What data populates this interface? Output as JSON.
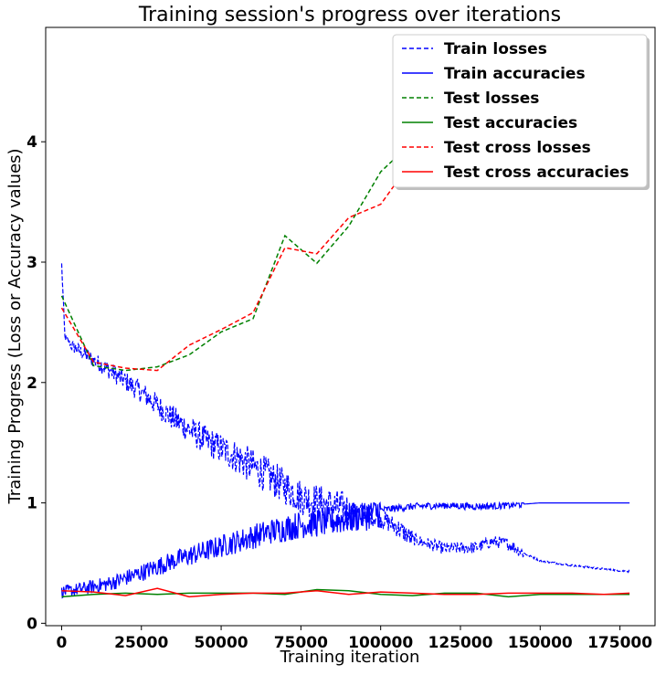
{
  "chart_data": {
    "type": "line",
    "title": "Training session's progress over iterations",
    "xlabel": "Training iteration",
    "ylabel": "Training Progress (Loss or Accuracy values)",
    "xlim": [
      -5000,
      186000
    ],
    "ylim": [
      -0.02,
      4.95
    ],
    "xticks": [
      0,
      25000,
      50000,
      75000,
      100000,
      125000,
      150000,
      175000
    ],
    "xtick_labels": [
      "0",
      "25000",
      "50000",
      "75000",
      "100000",
      "125000",
      "150000",
      "175000"
    ],
    "yticks": [
      0,
      1,
      2,
      3,
      4
    ],
    "ytick_labels": [
      "0",
      "1",
      "2",
      "3",
      "4"
    ],
    "grid": false,
    "legend_position": "top-right",
    "series": [
      {
        "name": "Train losses",
        "color": "#0000ff",
        "style": "dashed",
        "noisy": true,
        "x": [
          0,
          1000,
          3000,
          8000,
          15000,
          25000,
          35000,
          45000,
          55000,
          65000,
          75000,
          85000,
          92000,
          100000,
          105000,
          110000,
          120000,
          130000,
          135000,
          140000,
          145000,
          150000,
          160000,
          170000,
          178000
        ],
        "y": [
          2.98,
          2.38,
          2.31,
          2.22,
          2.1,
          1.92,
          1.7,
          1.52,
          1.38,
          1.22,
          1.05,
          0.97,
          0.93,
          0.87,
          0.8,
          0.7,
          0.62,
          0.63,
          0.68,
          0.66,
          0.58,
          0.52,
          0.48,
          0.45,
          0.43
        ]
      },
      {
        "name": "Train accuracies",
        "color": "#0000ff",
        "style": "solid",
        "noisy": true,
        "x": [
          0,
          5000,
          15000,
          25000,
          35000,
          45000,
          55000,
          65000,
          75000,
          85000,
          95000,
          100000,
          110000,
          120000,
          130000,
          140000,
          150000,
          160000,
          178000
        ],
        "y": [
          0.26,
          0.28,
          0.33,
          0.42,
          0.52,
          0.6,
          0.68,
          0.76,
          0.82,
          0.85,
          0.9,
          0.94,
          0.97,
          0.98,
          0.97,
          0.98,
          1.0,
          1.0,
          1.0
        ]
      },
      {
        "name": "Test losses",
        "color": "#008000",
        "style": "dashed",
        "noisy": false,
        "x": [
          0,
          10000,
          20000,
          30000,
          40000,
          50000,
          60000,
          70000,
          80000,
          90000,
          100000,
          110000
        ],
        "y": [
          2.72,
          2.14,
          2.1,
          2.13,
          2.23,
          2.42,
          2.53,
          3.22,
          2.99,
          3.3,
          3.75,
          4.0
        ]
      },
      {
        "name": "Test accuracies",
        "color": "#008000",
        "style": "solid",
        "noisy": false,
        "x": [
          0,
          10000,
          20000,
          30000,
          40000,
          50000,
          60000,
          70000,
          80000,
          90000,
          100000,
          110000,
          120000,
          130000,
          140000,
          150000,
          160000,
          170000,
          178000
        ],
        "y": [
          0.22,
          0.24,
          0.25,
          0.24,
          0.25,
          0.25,
          0.25,
          0.24,
          0.28,
          0.27,
          0.24,
          0.23,
          0.25,
          0.25,
          0.22,
          0.24,
          0.24,
          0.24,
          0.24
        ]
      },
      {
        "name": "Test cross losses",
        "color": "#ff0000",
        "style": "dashed",
        "noisy": false,
        "x": [
          0,
          10000,
          20000,
          30000,
          40000,
          50000,
          60000,
          70000,
          80000,
          90000,
          100000,
          110000
        ],
        "y": [
          2.62,
          2.17,
          2.12,
          2.1,
          2.31,
          2.44,
          2.58,
          3.12,
          3.07,
          3.37,
          3.48,
          3.85
        ]
      },
      {
        "name": "Test cross accuracies",
        "color": "#ff0000",
        "style": "solid",
        "noisy": false,
        "x": [
          0,
          10000,
          20000,
          30000,
          40000,
          50000,
          60000,
          70000,
          80000,
          90000,
          100000,
          110000,
          120000,
          130000,
          140000,
          150000,
          160000,
          170000,
          178000
        ],
        "y": [
          0.27,
          0.26,
          0.23,
          0.29,
          0.22,
          0.24,
          0.25,
          0.25,
          0.27,
          0.24,
          0.26,
          0.25,
          0.24,
          0.24,
          0.25,
          0.25,
          0.25,
          0.24,
          0.25
        ]
      }
    ]
  }
}
